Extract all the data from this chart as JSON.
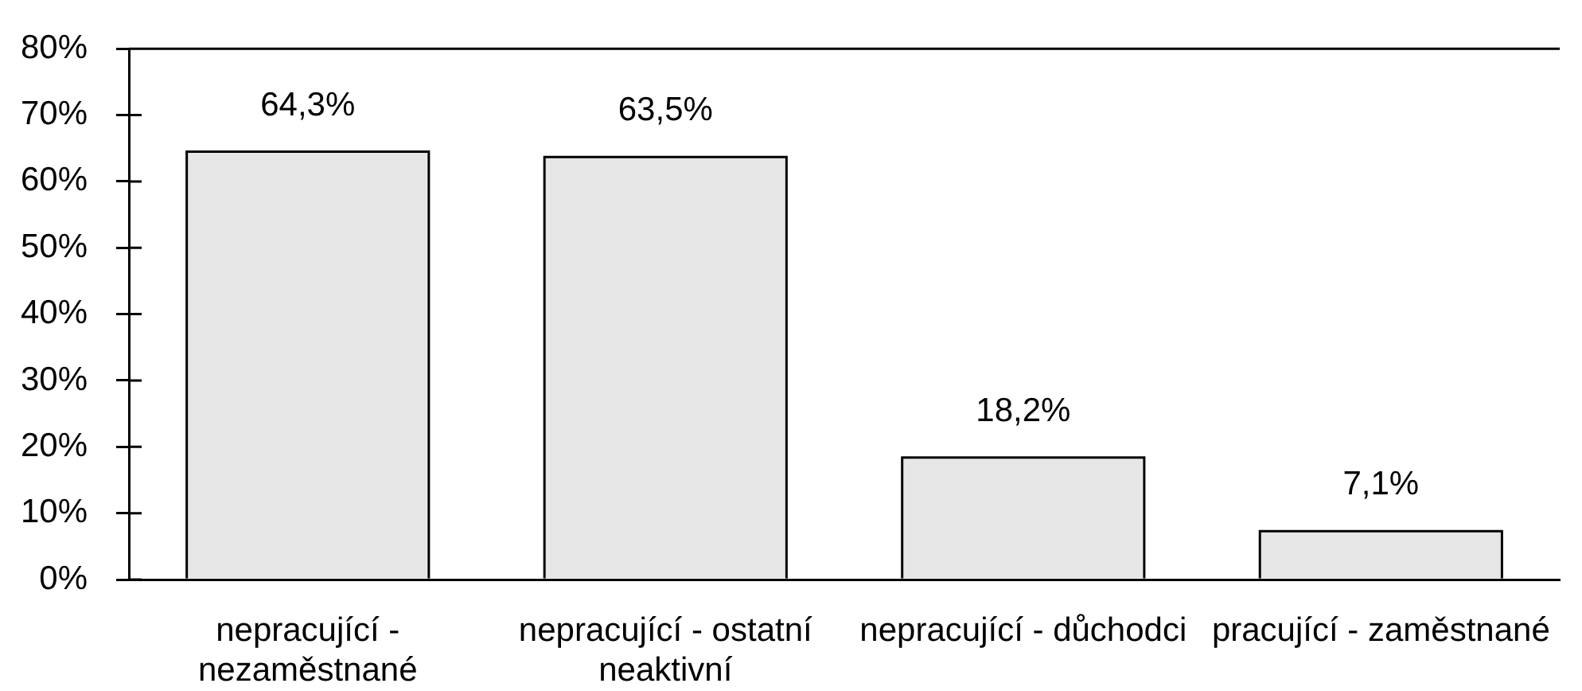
{
  "chart_data": {
    "type": "bar",
    "categories": [
      "nepracující - nezaměstnané",
      "nepracující - ostatní neaktivní",
      "nepracující - důchodci",
      "pracující - zaměstnané"
    ],
    "values": [
      64.3,
      63.5,
      18.2,
      7.1
    ],
    "value_labels": [
      "64,3%",
      "63,5%",
      "18,2%",
      "7,1%"
    ],
    "color": "#e6e6e6",
    "ylim": [
      0,
      80
    ],
    "yticks": [
      {
        "value": 0,
        "label": "0%"
      },
      {
        "value": 10,
        "label": "10%"
      },
      {
        "value": 20,
        "label": "20%"
      },
      {
        "value": 30,
        "label": "30%"
      },
      {
        "value": 40,
        "label": "40%"
      },
      {
        "value": 50,
        "label": "50%"
      },
      {
        "value": 60,
        "label": "60%"
      },
      {
        "value": 70,
        "label": "70%"
      },
      {
        "value": 80,
        "label": "80%"
      }
    ],
    "grid": false,
    "legend": false
  }
}
